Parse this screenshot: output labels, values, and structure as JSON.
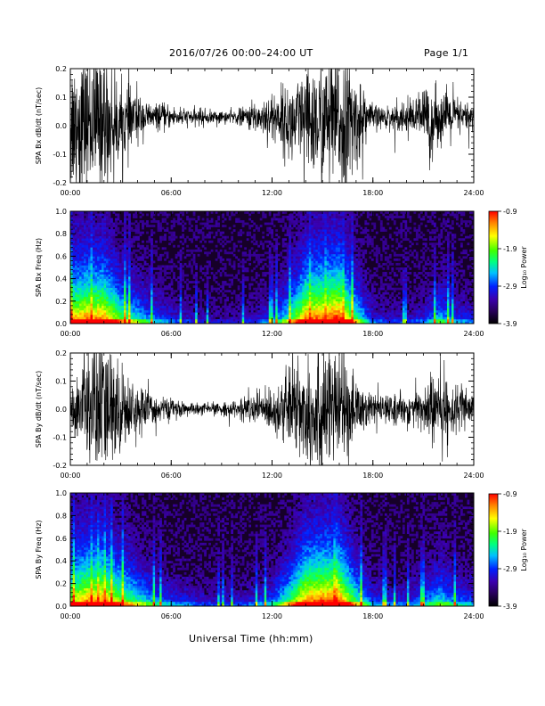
{
  "header": {
    "title": "2016/07/26  00:00–24:00 UT",
    "page": "Page 1/1"
  },
  "xlabel": "Universal Time (hh:mm)",
  "colorbar": {
    "ticks": [
      "-0.9",
      "-1.9",
      "-2.9",
      "-3.9"
    ],
    "label": "Log₁₀ Power"
  },
  "chart_data": [
    {
      "type": "line",
      "name": "bx-waveform",
      "ylabel": "SPA Bx dB/dt (nT/sec)",
      "xlim": [
        0,
        24
      ],
      "ylim": [
        -0.2,
        0.2
      ],
      "x_ticks": [
        "00:00",
        "06:00",
        "12:00",
        "18:00",
        "24:00"
      ],
      "y_ticks": [
        "-0.2",
        "-0.1",
        "0.0",
        "0.1",
        "0.2"
      ],
      "y_tick_values": [
        -0.2,
        -0.1,
        0.0,
        0.1,
        0.2
      ],
      "envelope_hours": [
        0,
        0.5,
        1,
        1.5,
        2,
        2.5,
        3,
        3.5,
        4,
        4.5,
        5,
        5.5,
        6,
        6.5,
        7,
        7.5,
        8,
        8.5,
        9,
        9.5,
        10,
        10.5,
        11,
        11.5,
        12,
        12.5,
        13,
        13.5,
        14,
        14.5,
        15,
        15.5,
        16,
        16.5,
        17,
        17.5,
        18,
        18.5,
        19,
        19.5,
        20,
        20.5,
        21,
        21.5,
        22,
        22.5,
        23,
        23.5,
        24
      ],
      "envelope_amplitude": [
        0.22,
        0.22,
        0.2,
        0.22,
        0.22,
        0.16,
        0.12,
        0.11,
        0.08,
        0.05,
        0.04,
        0.04,
        0.035,
        0.03,
        0.025,
        0.025,
        0.025,
        0.02,
        0.02,
        0.02,
        0.025,
        0.035,
        0.05,
        0.06,
        0.08,
        0.09,
        0.12,
        0.14,
        0.16,
        0.18,
        0.2,
        0.22,
        0.22,
        0.2,
        0.15,
        0.08,
        0.04,
        0.035,
        0.035,
        0.04,
        0.05,
        0.06,
        0.08,
        0.11,
        0.07,
        0.08,
        0.06,
        0.05,
        0.04
      ],
      "envelope_offset": 0.03
    },
    {
      "type": "heatmap",
      "name": "bx-spectrogram",
      "ylabel": "SPA Bx Freq (Hz)",
      "xlim": [
        0,
        24
      ],
      "ylim": [
        0,
        1
      ],
      "x_ticks": [
        "00:00",
        "06:00",
        "12:00",
        "18:00",
        "24:00"
      ],
      "y_ticks": [
        "0.0",
        "0.2",
        "0.4",
        "0.6",
        "0.8",
        "1.0"
      ],
      "y_tick_values": [
        0,
        0.2,
        0.4,
        0.6,
        0.8,
        1.0
      ],
      "clim": [
        -3.9,
        -0.9
      ],
      "activity_hours": [
        0,
        1,
        2,
        3,
        4,
        5,
        6,
        7,
        8,
        9,
        10,
        11,
        12,
        13,
        14,
        15,
        16,
        17,
        18,
        19,
        20,
        21,
        22,
        23,
        24
      ],
      "activity": [
        0.8,
        0.85,
        0.85,
        0.6,
        0.45,
        0.3,
        0.2,
        0.15,
        0.1,
        0.1,
        0.1,
        0.15,
        0.25,
        0.5,
        0.85,
        0.9,
        0.95,
        0.55,
        0.2,
        0.15,
        0.15,
        0.2,
        0.4,
        0.25,
        0.2
      ]
    },
    {
      "type": "line",
      "name": "by-waveform",
      "ylabel": "SPA By dB/dt (nT/sec)",
      "xlim": [
        0,
        24
      ],
      "ylim": [
        -0.2,
        0.2
      ],
      "x_ticks": [
        "00:00",
        "06:00",
        "12:00",
        "18:00",
        "24:00"
      ],
      "y_ticks": [
        "-0.2",
        "-0.1",
        "0.0",
        "0.1",
        "0.2"
      ],
      "y_tick_values": [
        -0.2,
        -0.1,
        0.0,
        0.1,
        0.2
      ],
      "envelope_hours": [
        0,
        0.5,
        1,
        1.5,
        2,
        2.5,
        3,
        3.5,
        4,
        4.5,
        5,
        5.5,
        6,
        6.5,
        7,
        7.5,
        8,
        8.5,
        9,
        9.5,
        10,
        10.5,
        11,
        11.5,
        12,
        12.5,
        13,
        13.5,
        14,
        14.5,
        15,
        15.5,
        16,
        16.5,
        17,
        17.5,
        18,
        18.5,
        19,
        19.5,
        20,
        20.5,
        21,
        21.5,
        22,
        22.5,
        23,
        23.5,
        24
      ],
      "envelope_amplitude": [
        0.06,
        0.12,
        0.22,
        0.22,
        0.22,
        0.18,
        0.14,
        0.1,
        0.08,
        0.06,
        0.05,
        0.04,
        0.03,
        0.025,
        0.02,
        0.02,
        0.018,
        0.018,
        0.02,
        0.025,
        0.03,
        0.04,
        0.05,
        0.06,
        0.07,
        0.09,
        0.12,
        0.16,
        0.2,
        0.22,
        0.22,
        0.2,
        0.18,
        0.14,
        0.1,
        0.07,
        0.05,
        0.045,
        0.04,
        0.045,
        0.05,
        0.06,
        0.08,
        0.12,
        0.1,
        0.09,
        0.08,
        0.06,
        0.05
      ],
      "envelope_offset": 0.0
    },
    {
      "type": "heatmap",
      "name": "by-spectrogram",
      "ylabel": "SPA By Freq (Hz)",
      "xlim": [
        0,
        24
      ],
      "ylim": [
        0,
        1
      ],
      "x_ticks": [
        "00:00",
        "06:00",
        "12:00",
        "18:00",
        "24:00"
      ],
      "y_ticks": [
        "0.0",
        "0.2",
        "0.4",
        "0.6",
        "0.8",
        "1.0"
      ],
      "y_tick_values": [
        0,
        0.2,
        0.4,
        0.6,
        0.8,
        1.0
      ],
      "clim": [
        -3.9,
        -0.9
      ],
      "activity_hours": [
        0,
        1,
        2,
        3,
        4,
        5,
        6,
        7,
        8,
        9,
        10,
        11,
        12,
        13,
        14,
        15,
        16,
        17,
        18,
        19,
        20,
        21,
        22,
        23,
        24
      ],
      "activity": [
        0.7,
        0.85,
        0.85,
        0.65,
        0.5,
        0.35,
        0.25,
        0.2,
        0.15,
        0.15,
        0.15,
        0.2,
        0.3,
        0.55,
        0.85,
        0.9,
        0.9,
        0.55,
        0.25,
        0.2,
        0.2,
        0.3,
        0.45,
        0.3,
        0.25
      ]
    }
  ]
}
